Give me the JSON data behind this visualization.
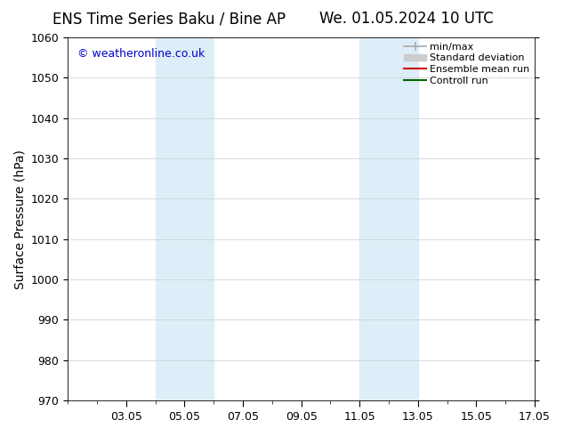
{
  "title_left": "ENS Time Series Baku / Bine AP",
  "title_right": "We. 01.05.2024 10 UTC",
  "ylabel": "Surface Pressure (hPa)",
  "ylim": [
    970,
    1060
  ],
  "yticks": [
    970,
    980,
    990,
    1000,
    1010,
    1020,
    1030,
    1040,
    1050,
    1060
  ],
  "xlim": [
    1.0,
    17.0
  ],
  "xtick_positions": [
    3,
    5,
    7,
    9,
    11,
    13,
    15,
    17
  ],
  "xtick_labels": [
    "03.05",
    "05.05",
    "07.05",
    "09.05",
    "11.05",
    "13.05",
    "15.05",
    "17.05"
  ],
  "shaded_bands": [
    {
      "x_start": 4.0,
      "x_end": 5.5,
      "color": "#ddeef8"
    },
    {
      "x_start": 5.5,
      "x_end": 6.0,
      "color": "#ddeef8"
    },
    {
      "x_start": 11.0,
      "x_end": 12.0,
      "color": "#ddeef8"
    },
    {
      "x_start": 12.0,
      "x_end": 13.0,
      "color": "#ddeef8"
    }
  ],
  "watermark_text": "© weatheronline.co.uk",
  "watermark_color": "#0000cc",
  "legend_items": [
    {
      "label": "min/max",
      "color": "#aaaaaa",
      "lw": 1.2
    },
    {
      "label": "Standard deviation",
      "color": "#cccccc",
      "lw": 7
    },
    {
      "label": "Ensemble mean run",
      "color": "#cc0000",
      "lw": 1.5
    },
    {
      "label": "Controll run",
      "color": "#006600",
      "lw": 1.5
    }
  ],
  "bg_color": "#ffffff",
  "grid_color": "#cccccc",
  "title_fontsize": 12,
  "ylabel_fontsize": 10,
  "tick_fontsize": 9,
  "legend_fontsize": 8,
  "watermark_fontsize": 9
}
